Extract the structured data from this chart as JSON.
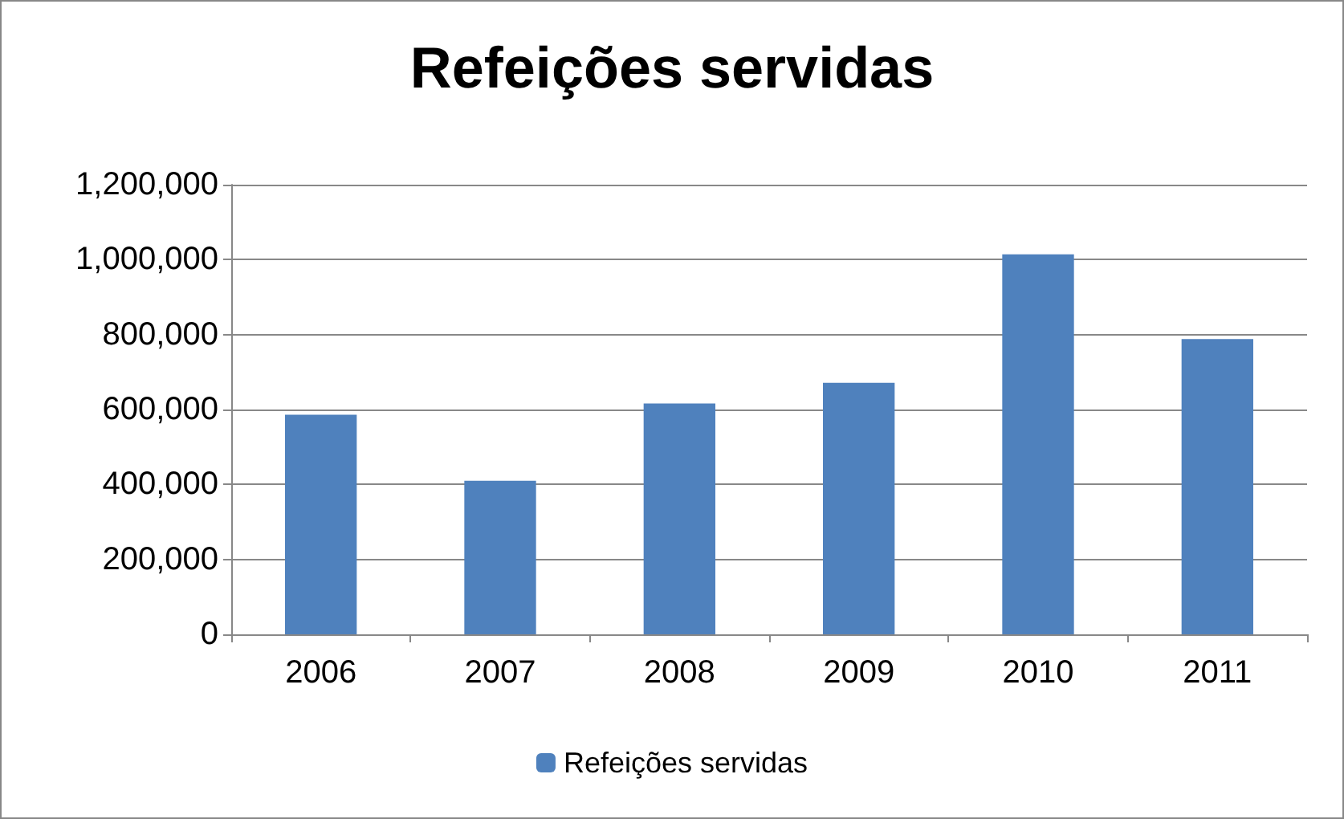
{
  "chart_data": {
    "type": "bar",
    "title": "Refeições servidas",
    "categories": [
      "2006",
      "2007",
      "2008",
      "2009",
      "2010",
      "2011"
    ],
    "series": [
      {
        "name": "Refeições servidas",
        "color": "#4f81bd",
        "values": [
          586000,
          410000,
          616000,
          671000,
          1014000,
          788000
        ]
      }
    ],
    "ylim": [
      0,
      1200000
    ],
    "yticks": [
      0,
      {
        "value": 200000,
        "label": "200,000"
      },
      {
        "value": 400000,
        "label": "400,000"
      },
      {
        "value": 600000,
        "label": "600,000"
      },
      {
        "value": 800000,
        "label": "800,000"
      },
      {
        "value": 1000000,
        "label": "1,000,000"
      },
      {
        "value": 1200000,
        "label": "1,200,000"
      }
    ],
    "grid": "y",
    "legend": "bottom"
  }
}
